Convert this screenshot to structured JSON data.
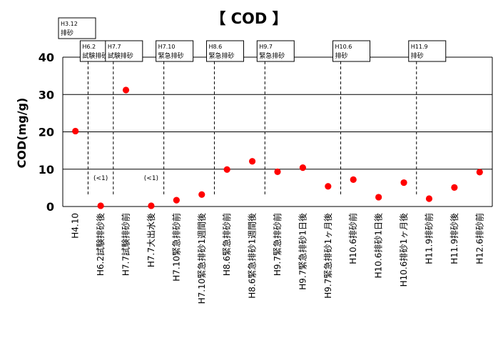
{
  "chart_data": {
    "type": "scatter",
    "title": "【 COD 】",
    "ylabel": "COD(mg/g)",
    "xlabel": "",
    "ylim": [
      0,
      40
    ],
    "yticks": [
      0,
      10,
      20,
      30,
      40
    ],
    "grid": "horizontal",
    "marker_color": "#ff0000",
    "categories": [
      "H4.10",
      "H6.2試験排砂後",
      "H7.7試験排砂前",
      "H7.7大出水後",
      "H7.10緊急排砂前",
      "H7.10緊急排砂1週間後",
      "H8.6緊急排砂前",
      "H8.6緊急排砂1週間後",
      "H9.7緊急排砂前",
      "H9.7緊急排砂1日後",
      "H9.7緊急排砂1ヶ月後",
      "H10.6排砂前",
      "H10.6排砂1日後",
      "H10.6排砂1ヶ月後",
      "H11.9排砂前",
      "H11.9排砂後",
      "H12.6排砂前"
    ],
    "series": [
      {
        "values": [
          20.2,
          0.2,
          31.2,
          0.2,
          1.7,
          3.2,
          9.9,
          12.1,
          9.3,
          10.4,
          5.4,
          7.2,
          2.5,
          6.4,
          2.1,
          5.1,
          9.2
        ]
      }
    ],
    "point_labels": [
      {
        "index": 1,
        "text": "(<1)"
      },
      {
        "index": 3,
        "text": "(<1)"
      }
    ],
    "events": [
      {
        "label": [
          "H3.12",
          "排砂"
        ],
        "after_index": null
      },
      {
        "label": [
          "H6.2",
          "試験排砂"
        ],
        "after_index": 0
      },
      {
        "label": [
          "H7.7",
          "試験排砂"
        ],
        "after_index": 1
      },
      {
        "label": [
          "H7.10",
          "緊急排砂"
        ],
        "after_index": 3
      },
      {
        "label": [
          "H8.6",
          "緊急排砂"
        ],
        "after_index": 5
      },
      {
        "label": [
          "H9.7",
          "緊急排砂"
        ],
        "after_index": 7
      },
      {
        "label": [
          "H10.6",
          "排砂"
        ],
        "after_index": 10
      },
      {
        "label": [
          "H11.9",
          "排砂"
        ],
        "after_index": 13
      }
    ]
  }
}
